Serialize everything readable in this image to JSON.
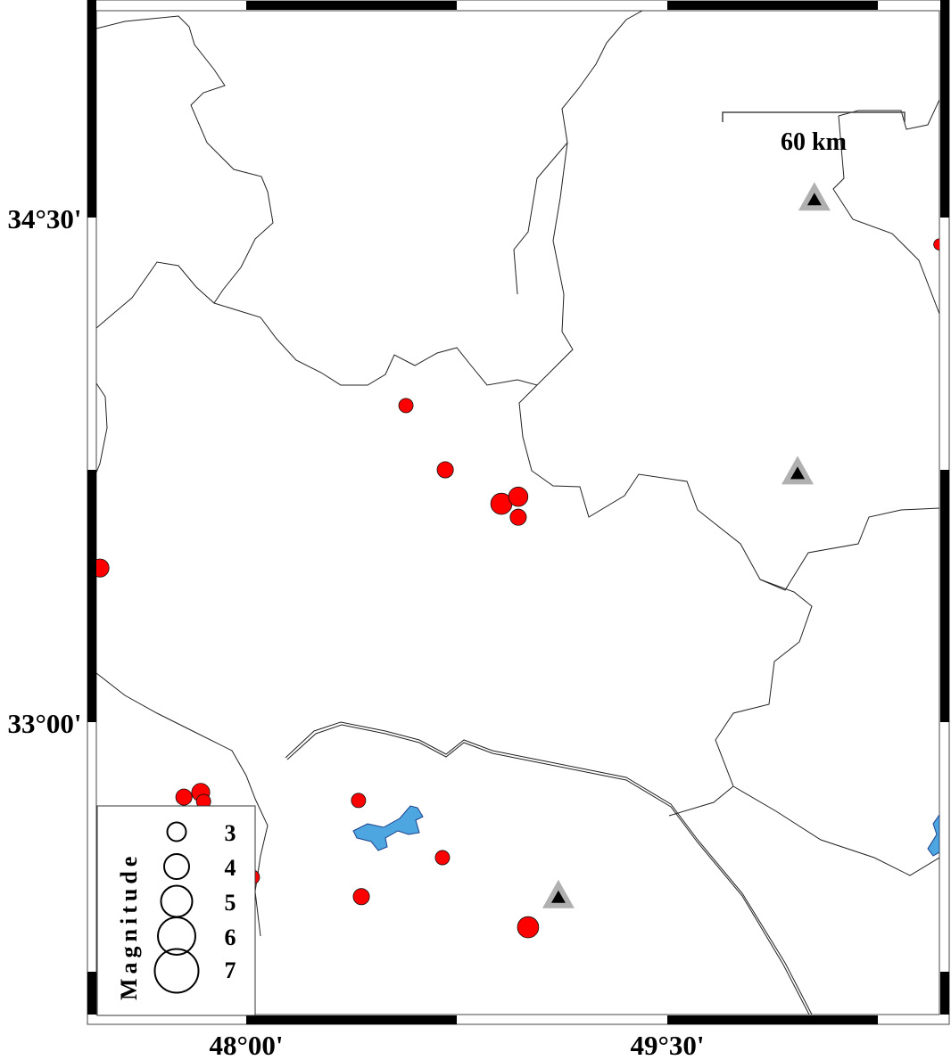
{
  "map": {
    "lat_labels": [
      "34°30'",
      "33°00'"
    ],
    "lon_labels": [
      "48°00'",
      "49°30'"
    ],
    "extent": {
      "lon_min": 47.43,
      "lon_max": 50.47,
      "lat_min": 32.11,
      "lat_max": 35.11
    },
    "scale_bar": {
      "label": "60 km",
      "length_km": 60
    },
    "colors": {
      "event": "#ff0000",
      "water": "#4da6e0",
      "station_outer": "#b0b0b0",
      "station_inner": "#000000",
      "border": "#222222"
    }
  },
  "legend": {
    "title": "Magnitude",
    "entries": [
      {
        "label": "3",
        "mag": 3
      },
      {
        "label": "4",
        "mag": 4
      },
      {
        "label": "5",
        "mag": 5
      },
      {
        "label": "6",
        "mag": 6
      },
      {
        "label": "7",
        "mag": 7
      }
    ]
  },
  "events": [
    {
      "lon": 48.569,
      "lat": 33.941,
      "mag": 2.3
    },
    {
      "lon": 48.709,
      "lat": 33.75,
      "mag": 2.6
    },
    {
      "lon": 48.909,
      "lat": 33.649,
      "mag": 3.4
    },
    {
      "lon": 48.969,
      "lat": 33.67,
      "mag": 3.1
    },
    {
      "lon": 48.969,
      "lat": 33.609,
      "mag": 2.6
    },
    {
      "lon": 47.479,
      "lat": 33.458,
      "mag": 2.9
    },
    {
      "lon": 47.778,
      "lat": 32.777,
      "mag": 2.6
    },
    {
      "lon": 47.838,
      "lat": 32.791,
      "mag": 2.9
    },
    {
      "lon": 47.848,
      "lat": 32.764,
      "mag": 2.3
    },
    {
      "lon": 48.022,
      "lat": 32.539,
      "mag": 2.3
    },
    {
      "lon": 48.4,
      "lat": 32.767,
      "mag": 2.3
    },
    {
      "lon": 48.699,
      "lat": 32.597,
      "mag": 2.3
    },
    {
      "lon": 48.41,
      "lat": 32.481,
      "mag": 2.6
    },
    {
      "lon": 49.004,
      "lat": 32.39,
      "mag": 3.4
    },
    {
      "lon": 50.469,
      "lat": 34.42,
      "mag": 1.8
    }
  ],
  "stations": [
    {
      "lon": 50.024,
      "lat": 34.555
    },
    {
      "lon": 49.964,
      "lat": 33.741
    },
    {
      "lon": 49.112,
      "lat": 32.481
    }
  ]
}
